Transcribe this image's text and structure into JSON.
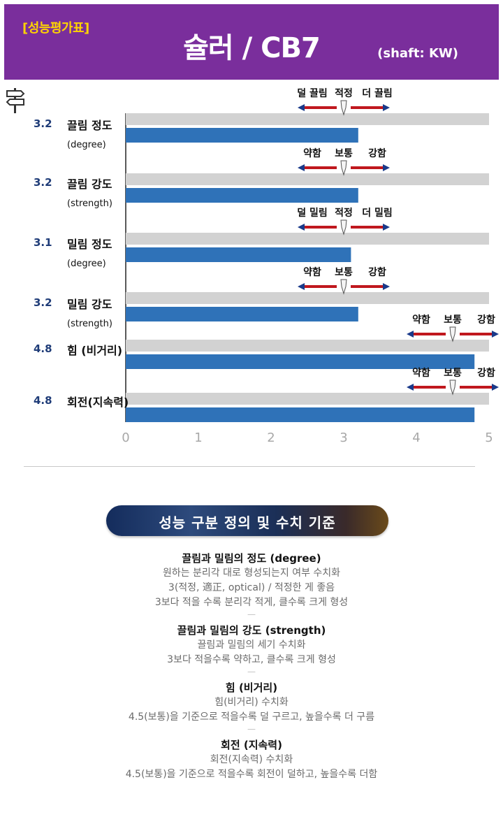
{
  "header": {
    "badge": "[성능평가표]",
    "title": "슐러 / CB7",
    "shaft": "(shaft: KW)",
    "bg_color": "#7a2e9c"
  },
  "chart_data": {
    "type": "bar",
    "orientation": "horizontal",
    "xlim": [
      0,
      5
    ],
    "x_ticks": [
      "0",
      "1",
      "2",
      "3",
      "4",
      "5"
    ],
    "bar_color": "#2f72b8",
    "track_color": "#d2d2d2",
    "rows": [
      {
        "value": 3.2,
        "value_label": "3.2",
        "label": "끌림 정도",
        "sub": "(degree)",
        "scale": {
          "left": "덜 끌림",
          "mid": "적정",
          "right": "더 끌림",
          "center": 3
        }
      },
      {
        "value": 3.2,
        "value_label": "3.2",
        "label": "끌림 강도",
        "sub": "(strength)",
        "scale": {
          "left": "약함",
          "mid": "보통",
          "right": "강함",
          "center": 3
        }
      },
      {
        "value": 3.1,
        "value_label": "3.1",
        "label": "밀림 정도",
        "sub": "(degree)",
        "scale": {
          "left": "덜 밀림",
          "mid": "적정",
          "right": "더 밀림",
          "center": 3
        }
      },
      {
        "value": 3.2,
        "value_label": "3.2",
        "label": "밀림 강도",
        "sub": "(strength)",
        "scale": {
          "left": "약함",
          "mid": "보통",
          "right": "강함",
          "center": 3
        }
      },
      {
        "value": 4.8,
        "value_label": "4.8",
        "label": "힘 (비거리)",
        "sub": "",
        "scale": {
          "left": "약함",
          "mid": "보통",
          "right": "강함",
          "center": 4.5
        }
      },
      {
        "value": 4.8,
        "value_label": "4.8",
        "label": "회전(지속력)",
        "sub": "",
        "scale": {
          "left": "약함",
          "mid": "보통",
          "right": "강함",
          "center": 4.5
        }
      }
    ]
  },
  "definitions": {
    "heading": "성능 구분 정의 및 수치 기준",
    "sections": [
      {
        "title": "끌림과 밀림의 정도 (degree)",
        "lines": [
          "원하는 분리각 대로 형성되는지 여부 수치화",
          "3(적정, 適正, optical) / 적정한 게 좋음",
          "3보다 적을 수록 분리각 적게, 클수록 크게 형성"
        ]
      },
      {
        "title": "끌림과 밀림의 강도 (strength)",
        "lines": [
          "끌림과 밀림의 세기 수치화",
          "3보다 적을수록 약하고, 클수록 크게 형성"
        ]
      },
      {
        "title": "힘 (비거리)",
        "lines": [
          "힘(비거리) 수치화",
          "4.5(보통)을 기준으로 적을수록 덜 구르고, 높을수록 더 구름"
        ]
      },
      {
        "title": "회전 (지속력)",
        "lines": [
          "회전(지속력) 수치화",
          "4.5(보통)을 기준으로 적을수록 회전이 덜하고, 높을수록 더함"
        ]
      }
    ],
    "separator": "—"
  }
}
